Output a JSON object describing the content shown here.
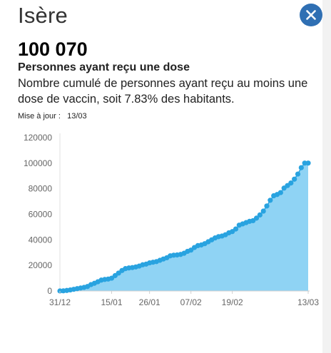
{
  "header": {
    "title": "Isère",
    "close_icon": "close-icon"
  },
  "stat": {
    "value": "100 070",
    "label": "Personnes ayant reçu une dose",
    "description": "Nombre cumulé de personnes ayant reçu au moins une dose de vaccin, soit 7.83% des habitants.",
    "update_label": "Mise à jour :",
    "update_date": "13/03"
  },
  "colors": {
    "accent": "#2f6fb3",
    "line": "#29a3e0",
    "fill": "#8fd3f4"
  },
  "chart_data": {
    "type": "area",
    "title": "",
    "xlabel": "",
    "ylabel": "",
    "ylim": [
      0,
      120000
    ],
    "yticks": [
      0,
      20000,
      40000,
      60000,
      80000,
      100000,
      120000
    ],
    "xtick_labels": [
      {
        "day": 0,
        "label": "31/12"
      },
      {
        "day": 15,
        "label": "15/01"
      },
      {
        "day": 26,
        "label": "26/01"
      },
      {
        "day": 38,
        "label": "07/02"
      },
      {
        "day": 50,
        "label": "19/02"
      },
      {
        "day": 72,
        "label": "13/03"
      }
    ],
    "grid": false,
    "series": [
      {
        "x": [
          0,
          1,
          2,
          3,
          4,
          5,
          6,
          7,
          8,
          9,
          10,
          11,
          12,
          13,
          14,
          15,
          16,
          17,
          18,
          19,
          20,
          21,
          22,
          23,
          24,
          25,
          26,
          27,
          28,
          29,
          30,
          31,
          32,
          33,
          34,
          35,
          36,
          37,
          38,
          39,
          40,
          41,
          42,
          43,
          44,
          45,
          46,
          47,
          48,
          49,
          50,
          51,
          52,
          53,
          54,
          55,
          56,
          57,
          58,
          59,
          60,
          61,
          62,
          63,
          64,
          65,
          66,
          67,
          68,
          69,
          70,
          71,
          72
        ],
        "values": [
          0,
          100,
          400,
          800,
          1300,
          1800,
          2300,
          2800,
          3500,
          5000,
          6000,
          7200,
          8500,
          9000,
          9300,
          10000,
          12000,
          14000,
          16000,
          17500,
          18000,
          18300,
          18800,
          19500,
          20500,
          21000,
          22000,
          22500,
          23000,
          24000,
          25000,
          26000,
          27500,
          28000,
          28200,
          28600,
          29500,
          31000,
          32000,
          34000,
          35500,
          36000,
          37000,
          38500,
          40000,
          41500,
          42500,
          43000,
          44000,
          45500,
          46500,
          48500,
          51500,
          52500,
          53500,
          54500,
          55000,
          57000,
          59500,
          62500,
          66500,
          71000,
          74500,
          75500,
          77000,
          80500,
          82500,
          84500,
          87500,
          91500,
          96500,
          100070,
          100070
        ]
      }
    ]
  }
}
